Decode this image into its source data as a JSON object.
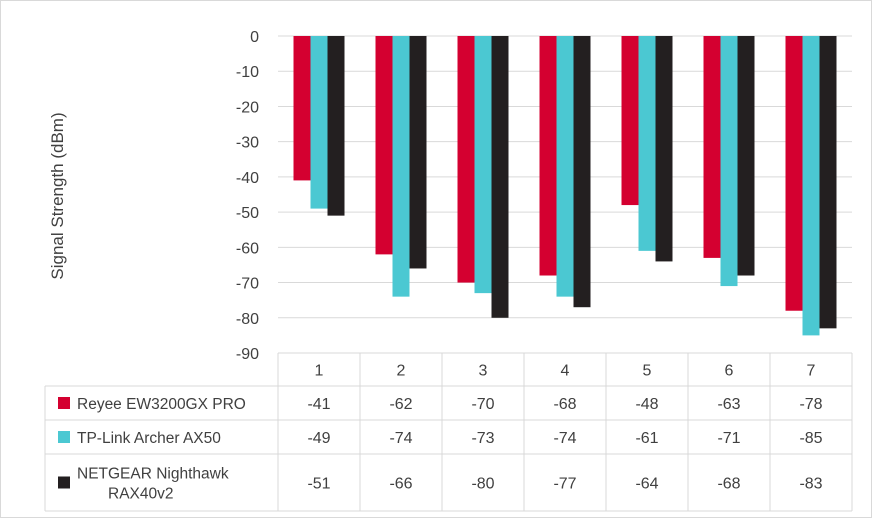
{
  "chart_data": {
    "type": "bar",
    "ylabel": "Signal Strength (dBm)",
    "ylim": [
      -90,
      0
    ],
    "yticks": [
      0,
      -10,
      -20,
      -30,
      -40,
      -50,
      -60,
      -70,
      -80,
      -90
    ],
    "categories": [
      "1",
      "2",
      "3",
      "4",
      "5",
      "6",
      "7"
    ],
    "grid": true,
    "legend_placement": "data-table-left",
    "series": [
      {
        "name": "Reyee EW3200GX PRO",
        "color": "#d40030",
        "values": [
          -41,
          -62,
          -70,
          -68,
          -48,
          -63,
          -78
        ]
      },
      {
        "name": "TP-Link Archer AX50",
        "color": "#4bc8d2",
        "values": [
          -49,
          -74,
          -73,
          -74,
          -61,
          -71,
          -85
        ]
      },
      {
        "name": "NETGEAR Nighthawk RAX40v2",
        "name_lines": [
          "NETGEAR Nighthawk",
          "RAX40v2"
        ],
        "color": "#231f20",
        "values": [
          -51,
          -66,
          -80,
          -77,
          -64,
          -68,
          -83
        ]
      }
    ]
  }
}
